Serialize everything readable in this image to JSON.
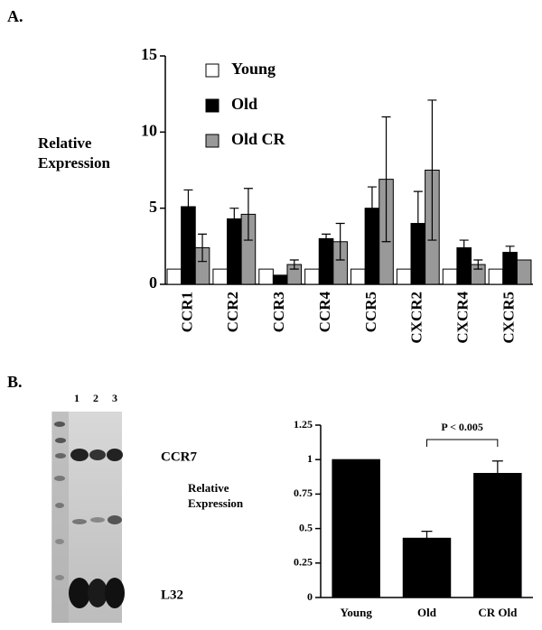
{
  "panels": [
    "A.",
    "B."
  ],
  "gel": {
    "lanes": [
      "1",
      "2",
      "3"
    ],
    "bands": [
      "CCR7",
      "L32"
    ]
  },
  "chart_data": [
    {
      "type": "bar",
      "y_label": "Relative Expression",
      "categories": [
        "CCR1",
        "CCR2",
        "CCR3",
        "CCR4",
        "CCR5",
        "CXCR2",
        "CXCR4",
        "CXCR5"
      ],
      "series": [
        {
          "name": "Young",
          "color": "#ffffff",
          "values": [
            1,
            1,
            1,
            1,
            1,
            1,
            1,
            1
          ],
          "errors": [
            null,
            null,
            null,
            null,
            null,
            null,
            null,
            null
          ]
        },
        {
          "name": "Old",
          "color": "#000000",
          "values": [
            5.1,
            4.3,
            0.6,
            3.0,
            5.0,
            4.0,
            2.4,
            2.1
          ],
          "errors": [
            1.1,
            0.7,
            null,
            0.3,
            1.4,
            2.1,
            0.5,
            0.4
          ]
        },
        {
          "name": "Old CR",
          "color": "#999999",
          "values": [
            2.4,
            4.6,
            1.3,
            2.8,
            6.9,
            7.5,
            1.3,
            1.6
          ],
          "errors": [
            0.9,
            1.7,
            0.3,
            1.2,
            4.1,
            4.6,
            0.3,
            null
          ]
        }
      ],
      "ylim": [
        0,
        15
      ],
      "yticks": [
        0,
        5,
        10,
        15
      ],
      "legend": "upper left"
    },
    {
      "type": "bar",
      "y_label": "Relative Expression",
      "annotation": "P < 0.005",
      "categories": [
        "Young",
        "Old",
        "CR Old"
      ],
      "series": [
        {
          "color": "#000000",
          "values": [
            1,
            0.43,
            0.9
          ],
          "errors": [
            null,
            0.05,
            0.09
          ]
        }
      ],
      "ylim": [
        0,
        1.25
      ],
      "yticks": [
        0,
        0.25,
        0.5,
        0.75,
        1,
        1.25
      ]
    }
  ]
}
